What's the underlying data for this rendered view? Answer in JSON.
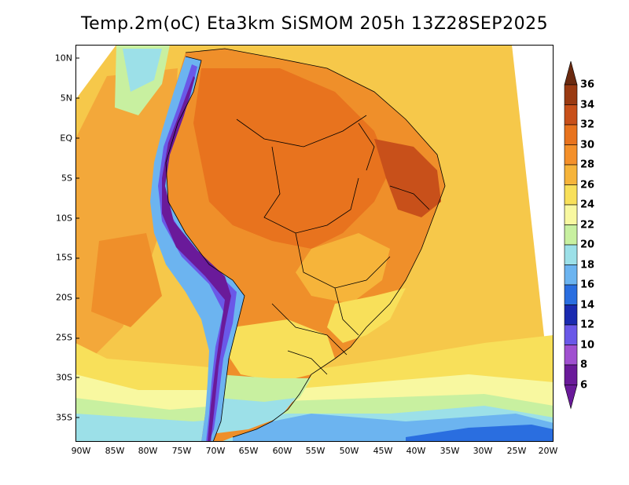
{
  "title": "Temp.2m(oC) Eta3km SiSMOM 205h 13Z28SEP2025",
  "map": {
    "lat_labels": [
      "10N",
      "5N",
      "EQ",
      "5S",
      "10S",
      "15S",
      "20S",
      "25S",
      "30S",
      "35S"
    ],
    "lon_labels": [
      "90W",
      "85W",
      "80W",
      "75W",
      "70W",
      "65W",
      "60W",
      "55W",
      "50W",
      "45W",
      "40W",
      "35W",
      "30W",
      "25W",
      "20W"
    ]
  },
  "colorbar": {
    "labels": [
      "36",
      "34",
      "32",
      "30",
      "28",
      "26",
      "24",
      "22",
      "20",
      "18",
      "16",
      "14",
      "12",
      "10",
      "8",
      "6"
    ],
    "colors": [
      "#6b2a10",
      "#9a3a12",
      "#c8501a",
      "#e8731e",
      "#f4902a",
      "#f6b43a",
      "#f8e05a",
      "#f8f8a0",
      "#c8f0a0",
      "#9ce0e8",
      "#6cb4f0",
      "#2a6ee0",
      "#1a2ab0",
      "#6a58e8",
      "#a050d0",
      "#6a1a9a"
    ]
  }
}
